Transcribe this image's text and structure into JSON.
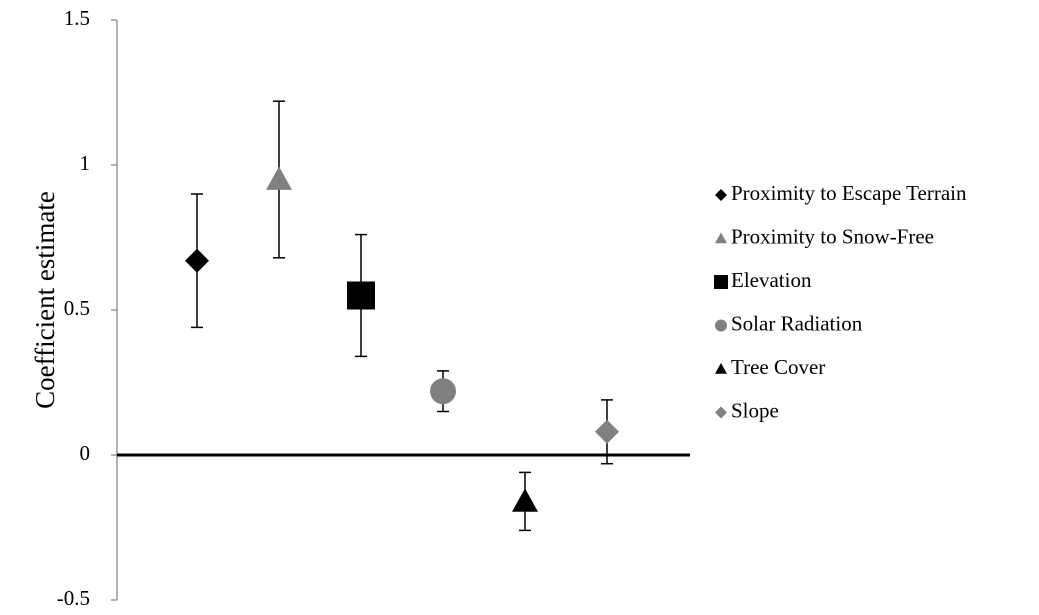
{
  "chart_data": {
    "type": "scatter",
    "title": "",
    "xlabel": "",
    "ylabel": "Coefficient estimate",
    "ylim": [
      -0.5,
      1.5
    ],
    "yticks": [
      {
        "value": 1.5,
        "label": "1.5"
      },
      {
        "value": 1.0,
        "label": "1"
      },
      {
        "value": 0.5,
        "label": "0.5"
      },
      {
        "value": 0.0,
        "label": "0"
      },
      {
        "value": -0.5,
        "label": "-0.5"
      }
    ],
    "grid": false,
    "legend_position": "right",
    "series": [
      {
        "name": "Proximity to Escape Terrain",
        "x": 1,
        "y": 0.67,
        "err_low": 0.44,
        "err_high": 0.9,
        "marker": "diamond",
        "color": "#000000"
      },
      {
        "name": "Proximity to Snow-Free",
        "x": 2,
        "y": 0.95,
        "err_low": 0.68,
        "err_high": 1.22,
        "marker": "triangle",
        "color": "#808080"
      },
      {
        "name": "Elevation",
        "x": 3,
        "y": 0.55,
        "err_low": 0.34,
        "err_high": 0.76,
        "marker": "square",
        "color": "#000000"
      },
      {
        "name": "Solar Radiation",
        "x": 4,
        "y": 0.22,
        "err_low": 0.15,
        "err_high": 0.29,
        "marker": "circle",
        "color": "#808080"
      },
      {
        "name": "Tree Cover",
        "x": 5,
        "y": -0.16,
        "err_low": -0.26,
        "err_high": -0.06,
        "marker": "triangle",
        "color": "#000000"
      },
      {
        "name": "Slope",
        "x": 6,
        "y": 0.08,
        "err_low": -0.03,
        "err_high": 0.19,
        "marker": "diamond",
        "color": "#808080"
      }
    ]
  }
}
